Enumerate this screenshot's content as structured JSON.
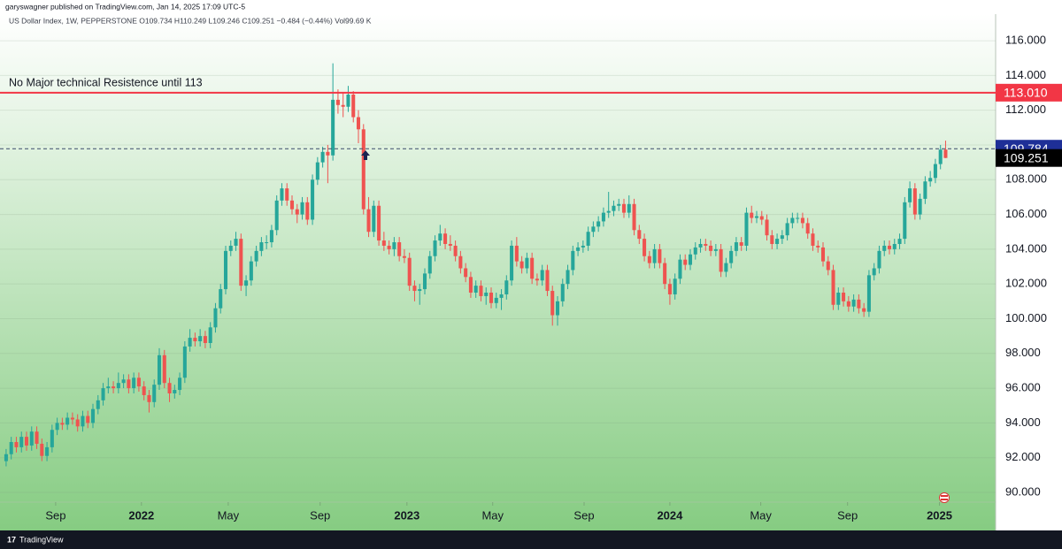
{
  "header": "garyswagner published on TradingView.com, Jan 14, 2025 17:09 UTC-5",
  "footer": "TradingView",
  "chart_data": {
    "type": "candlestick",
    "title": "US Dollar Index, 1W, PEPPERSTONE  O109.734  H110.249  L109.246  C109.251  −0.484 (−0.44%)  Vol99.69 K",
    "annotation": "No Major technical Resistence until 113",
    "up_color": "#26a69a",
    "down_color": "#ef5350",
    "grid": true,
    "ylim": [
      89.44,
      117.53
    ],
    "yticks": [
      {
        "value": 90,
        "label": "90.000"
      },
      {
        "value": 92,
        "label": "92.000"
      },
      {
        "value": 94,
        "label": "94.000"
      },
      {
        "value": 96,
        "label": "96.000"
      },
      {
        "value": 98,
        "label": "98.000"
      },
      {
        "value": 100,
        "label": "100.000"
      },
      {
        "value": 102,
        "label": "102.000"
      },
      {
        "value": 104,
        "label": "104.000"
      },
      {
        "value": 106,
        "label": "106.000"
      },
      {
        "value": 108,
        "label": "108.000"
      },
      {
        "value": 110,
        "label": "110.000"
      },
      {
        "value": 112,
        "label": "112.000"
      },
      {
        "value": 114,
        "label": "114.000"
      },
      {
        "value": 116,
        "label": "116.000"
      }
    ],
    "xlim": [
      -1.2,
      193.8
    ],
    "xticks": [
      {
        "value": 9.7,
        "label": "Sep"
      },
      {
        "value": 26.5,
        "label": "2022"
      },
      {
        "value": 43.5,
        "label": "May"
      },
      {
        "value": 61.5,
        "label": "Sep"
      },
      {
        "value": 78.5,
        "label": "2023"
      },
      {
        "value": 95.3,
        "label": "May"
      },
      {
        "value": 113.2,
        "label": "Sep"
      },
      {
        "value": 130,
        "label": "2024"
      },
      {
        "value": 147.8,
        "label": "May"
      },
      {
        "value": 164.8,
        "label": "Sep"
      },
      {
        "value": 182.8,
        "label": "2025"
      }
    ],
    "resistance": {
      "value": 113.01,
      "label": "113.010",
      "color": "#f23645"
    },
    "prev_close": {
      "value": 109.784,
      "label": "109.784",
      "color": "#1e2f97"
    },
    "last_price": {
      "value": 109.251,
      "label": "109.251",
      "color": "#000000"
    },
    "candles": [
      [
        91.8,
        92.5,
        91.5,
        92.2
      ],
      [
        92.2,
        93.2,
        91.9,
        92.9
      ],
      [
        92.9,
        93.2,
        92.3,
        92.6
      ],
      [
        92.6,
        93.5,
        92.3,
        93.2
      ],
      [
        93.2,
        93.5,
        92.4,
        92.7
      ],
      [
        92.7,
        93.8,
        92.4,
        93.5
      ],
      [
        93.5,
        93.8,
        92.5,
        92.8
      ],
      [
        92.8,
        93.1,
        91.8,
        92.1
      ],
      [
        92.1,
        92.9,
        91.8,
        92.6
      ],
      [
        92.6,
        93.9,
        92.3,
        93.6
      ],
      [
        93.6,
        94.3,
        93.3,
        94.0
      ],
      [
        94.0,
        94.3,
        93.6,
        93.9
      ],
      [
        93.9,
        94.6,
        93.6,
        94.3
      ],
      [
        94.3,
        94.6,
        93.9,
        94.2
      ],
      [
        94.2,
        94.5,
        93.5,
        93.8
      ],
      [
        93.8,
        94.7,
        93.5,
        94.4
      ],
      [
        94.4,
        94.7,
        93.7,
        94.0
      ],
      [
        94.0,
        95.1,
        93.7,
        94.8
      ],
      [
        94.8,
        95.6,
        94.5,
        95.3
      ],
      [
        95.3,
        96.3,
        95.0,
        96.0
      ],
      [
        96.0,
        96.6,
        95.7,
        96.1
      ],
      [
        96.1,
        96.4,
        95.7,
        96.0
      ],
      [
        96.0,
        96.9,
        95.7,
        96.3
      ],
      [
        96.3,
        96.8,
        96.0,
        96.5
      ],
      [
        96.5,
        96.8,
        95.7,
        96.0
      ],
      [
        96.0,
        96.9,
        95.7,
        96.6
      ],
      [
        96.6,
        96.9,
        95.8,
        96.1
      ],
      [
        96.1,
        96.4,
        95.3,
        95.6
      ],
      [
        95.6,
        95.9,
        94.6,
        95.2
      ],
      [
        95.2,
        96.5,
        94.9,
        96.2
      ],
      [
        96.2,
        98.3,
        95.9,
        97.9
      ],
      [
        97.9,
        98.2,
        96.0,
        96.3
      ],
      [
        96.3,
        96.6,
        95.2,
        95.7
      ],
      [
        95.7,
        96.2,
        95.4,
        95.9
      ],
      [
        95.9,
        96.9,
        95.6,
        96.6
      ],
      [
        96.6,
        98.7,
        96.3,
        98.4
      ],
      [
        98.4,
        99.4,
        98.1,
        98.9
      ],
      [
        98.9,
        99.2,
        98.4,
        98.7
      ],
      [
        98.7,
        99.4,
        98.4,
        99.0
      ],
      [
        99.0,
        99.3,
        98.3,
        98.6
      ],
      [
        98.6,
        99.8,
        98.3,
        99.5
      ],
      [
        99.5,
        100.9,
        99.2,
        100.6
      ],
      [
        100.6,
        102.0,
        100.3,
        101.7
      ],
      [
        101.7,
        104.2,
        101.4,
        103.9
      ],
      [
        103.9,
        104.5,
        103.6,
        104.2
      ],
      [
        104.2,
        105.0,
        103.9,
        104.6
      ],
      [
        104.6,
        104.9,
        101.6,
        101.9
      ],
      [
        101.9,
        102.5,
        101.3,
        102.2
      ],
      [
        102.2,
        103.6,
        101.9,
        103.3
      ],
      [
        103.3,
        104.2,
        103.0,
        103.9
      ],
      [
        103.9,
        104.7,
        103.6,
        104.4
      ],
      [
        104.4,
        104.8,
        104.0,
        104.4
      ],
      [
        104.4,
        105.4,
        104.1,
        105.1
      ],
      [
        105.1,
        107.1,
        104.8,
        106.8
      ],
      [
        106.8,
        107.8,
        106.5,
        107.5
      ],
      [
        107.5,
        107.8,
        106.5,
        106.8
      ],
      [
        106.8,
        107.1,
        106.0,
        106.3
      ],
      [
        106.3,
        106.6,
        105.5,
        106.0
      ],
      [
        106.0,
        107.0,
        105.7,
        106.7
      ],
      [
        106.7,
        107.0,
        105.4,
        105.7
      ],
      [
        105.7,
        108.3,
        105.4,
        108.0
      ],
      [
        108.0,
        109.3,
        107.7,
        109.0
      ],
      [
        109.0,
        109.9,
        108.7,
        109.6
      ],
      [
        109.6,
        110.0,
        107.8,
        109.4
      ],
      [
        109.4,
        114.7,
        109.1,
        112.6
      ],
      [
        112.6,
        113.2,
        111.8,
        112.3
      ],
      [
        112.3,
        113.0,
        111.6,
        112.2
      ],
      [
        112.2,
        113.4,
        111.9,
        112.9
      ],
      [
        112.9,
        113.1,
        111.3,
        111.6
      ],
      [
        111.6,
        112.0,
        110.1,
        110.9
      ],
      [
        110.9,
        111.2,
        106.0,
        106.3
      ],
      [
        106.3,
        107.0,
        104.7,
        105.0
      ],
      [
        105.0,
        106.8,
        104.7,
        106.5
      ],
      [
        106.5,
        106.8,
        104.2,
        104.5
      ],
      [
        104.5,
        105.0,
        103.9,
        104.2
      ],
      [
        104.2,
        104.5,
        103.7,
        104.0
      ],
      [
        104.0,
        104.7,
        103.6,
        104.4
      ],
      [
        104.4,
        104.7,
        103.3,
        103.6
      ],
      [
        103.6,
        104.0,
        103.2,
        103.5
      ],
      [
        103.5,
        103.8,
        101.6,
        101.9
      ],
      [
        101.9,
        102.2,
        101.0,
        101.6
      ],
      [
        101.6,
        102.0,
        100.8,
        101.7
      ],
      [
        101.7,
        102.9,
        101.4,
        102.6
      ],
      [
        102.6,
        103.9,
        102.3,
        103.6
      ],
      [
        103.6,
        104.8,
        103.3,
        104.5
      ],
      [
        104.5,
        105.4,
        104.2,
        104.9
      ],
      [
        104.9,
        105.2,
        104.0,
        104.3
      ],
      [
        104.3,
        104.8,
        103.9,
        104.2
      ],
      [
        104.2,
        104.5,
        103.3,
        103.6
      ],
      [
        103.6,
        103.9,
        102.6,
        102.9
      ],
      [
        102.9,
        103.2,
        102.1,
        102.4
      ],
      [
        102.4,
        102.7,
        101.2,
        101.5
      ],
      [
        101.5,
        102.2,
        101.2,
        101.9
      ],
      [
        101.9,
        102.2,
        101.0,
        101.3
      ],
      [
        101.3,
        101.8,
        100.8,
        101.5
      ],
      [
        101.5,
        101.8,
        100.6,
        100.9
      ],
      [
        100.9,
        101.5,
        100.6,
        101.2
      ],
      [
        101.2,
        101.7,
        100.5,
        101.4
      ],
      [
        101.4,
        102.5,
        101.1,
        102.2
      ],
      [
        102.2,
        104.5,
        101.9,
        104.2
      ],
      [
        104.2,
        104.7,
        103.0,
        103.3
      ],
      [
        103.3,
        103.6,
        102.6,
        102.9
      ],
      [
        102.9,
        103.8,
        102.6,
        103.5
      ],
      [
        103.5,
        103.8,
        102.0,
        102.3
      ],
      [
        102.3,
        102.6,
        101.9,
        102.2
      ],
      [
        102.2,
        103.1,
        101.9,
        102.8
      ],
      [
        102.8,
        103.1,
        101.3,
        101.6
      ],
      [
        101.6,
        101.9,
        99.6,
        100.2
      ],
      [
        100.2,
        101.3,
        99.6,
        101.0
      ],
      [
        101.0,
        102.3,
        100.7,
        102.0
      ],
      [
        102.0,
        103.1,
        101.7,
        102.8
      ],
      [
        102.8,
        104.2,
        102.5,
        103.9
      ],
      [
        103.9,
        104.4,
        103.6,
        104.1
      ],
      [
        104.1,
        104.5,
        103.8,
        104.2
      ],
      [
        104.2,
        105.3,
        103.9,
        105.0
      ],
      [
        105.0,
        105.6,
        104.7,
        105.3
      ],
      [
        105.3,
        105.9,
        105.0,
        105.6
      ],
      [
        105.6,
        106.4,
        105.3,
        106.1
      ],
      [
        106.1,
        107.3,
        105.8,
        106.2
      ],
      [
        106.2,
        106.8,
        105.9,
        106.5
      ],
      [
        106.5,
        106.9,
        106.2,
        106.6
      ],
      [
        106.6,
        106.9,
        105.8,
        106.1
      ],
      [
        106.1,
        107.1,
        105.8,
        106.6
      ],
      [
        106.6,
        106.9,
        104.8,
        105.1
      ],
      [
        105.1,
        105.4,
        104.3,
        104.6
      ],
      [
        104.6,
        104.9,
        103.3,
        103.6
      ],
      [
        103.6,
        103.9,
        102.9,
        103.2
      ],
      [
        103.2,
        104.3,
        102.9,
        104.0
      ],
      [
        104.0,
        104.3,
        102.9,
        103.2
      ],
      [
        103.2,
        103.5,
        101.7,
        102.0
      ],
      [
        102.0,
        102.3,
        100.8,
        101.4
      ],
      [
        101.4,
        102.6,
        101.1,
        102.3
      ],
      [
        102.3,
        103.7,
        102.0,
        103.4
      ],
      [
        103.4,
        103.7,
        102.8,
        103.1
      ],
      [
        103.1,
        104.0,
        102.8,
        103.7
      ],
      [
        103.7,
        104.4,
        103.4,
        104.1
      ],
      [
        104.1,
        104.6,
        103.8,
        104.3
      ],
      [
        104.3,
        104.6,
        103.9,
        104.2
      ],
      [
        104.2,
        104.5,
        103.6,
        103.9
      ],
      [
        103.9,
        104.3,
        103.6,
        104.0
      ],
      [
        104.0,
        104.3,
        102.4,
        102.7
      ],
      [
        102.7,
        103.5,
        102.4,
        103.2
      ],
      [
        103.2,
        104.2,
        102.9,
        103.9
      ],
      [
        103.9,
        104.7,
        103.6,
        104.4
      ],
      [
        104.4,
        104.7,
        103.9,
        104.2
      ],
      [
        104.2,
        106.4,
        103.9,
        106.1
      ],
      [
        106.1,
        106.5,
        105.5,
        105.8
      ],
      [
        105.8,
        106.2,
        105.5,
        105.9
      ],
      [
        105.9,
        106.2,
        105.4,
        105.7
      ],
      [
        105.7,
        106.0,
        104.5,
        104.8
      ],
      [
        104.8,
        105.1,
        104.0,
        104.3
      ],
      [
        104.3,
        104.9,
        104.0,
        104.6
      ],
      [
        104.6,
        105.1,
        104.3,
        104.8
      ],
      [
        104.8,
        105.8,
        104.5,
        105.5
      ],
      [
        105.5,
        106.1,
        105.2,
        105.8
      ],
      [
        105.8,
        106.1,
        105.5,
        105.8
      ],
      [
        105.8,
        106.1,
        105.2,
        105.5
      ],
      [
        105.5,
        105.8,
        104.6,
        104.9
      ],
      [
        104.9,
        105.2,
        103.9,
        104.2
      ],
      [
        104.2,
        104.5,
        103.8,
        104.1
      ],
      [
        104.1,
        104.4,
        103.0,
        103.3
      ],
      [
        103.3,
        103.6,
        102.5,
        102.8
      ],
      [
        102.8,
        103.1,
        100.5,
        100.8
      ],
      [
        100.8,
        101.8,
        100.5,
        101.5
      ],
      [
        101.5,
        101.8,
        100.7,
        101.0
      ],
      [
        101.0,
        101.3,
        100.4,
        100.7
      ],
      [
        100.7,
        101.4,
        100.4,
        101.1
      ],
      [
        101.1,
        101.4,
        100.3,
        100.6
      ],
      [
        100.6,
        100.9,
        100.1,
        100.4
      ],
      [
        100.4,
        102.8,
        100.1,
        102.5
      ],
      [
        102.5,
        103.2,
        102.2,
        102.9
      ],
      [
        102.9,
        104.2,
        102.6,
        103.9
      ],
      [
        103.9,
        104.5,
        103.6,
        104.2
      ],
      [
        104.2,
        104.5,
        103.7,
        104.0
      ],
      [
        104.0,
        104.6,
        103.7,
        104.3
      ],
      [
        104.3,
        104.9,
        104.0,
        104.6
      ],
      [
        104.6,
        107.0,
        104.3,
        106.7
      ],
      [
        106.7,
        107.9,
        106.4,
        107.5
      ],
      [
        107.5,
        107.8,
        105.7,
        106.0
      ],
      [
        106.0,
        107.2,
        105.7,
        106.9
      ],
      [
        106.9,
        108.2,
        106.6,
        107.9
      ],
      [
        107.9,
        108.5,
        107.6,
        108.1
      ],
      [
        108.1,
        109.2,
        107.8,
        108.9
      ],
      [
        108.9,
        110.0,
        108.6,
        109.73
      ],
      [
        109.734,
        110.249,
        109.246,
        109.251
      ]
    ]
  }
}
